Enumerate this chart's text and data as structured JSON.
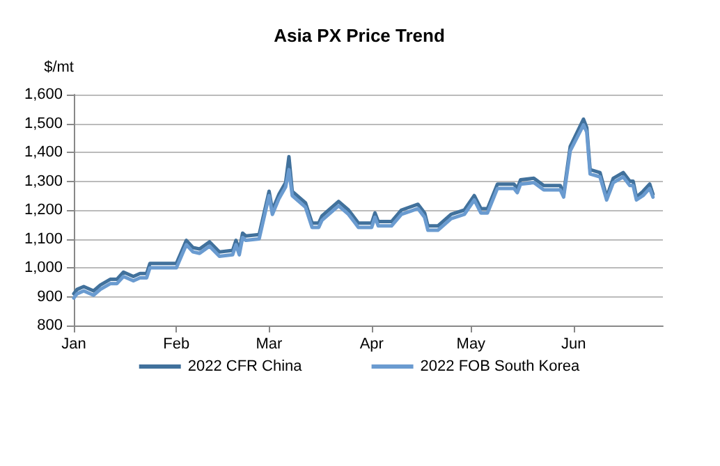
{
  "chart_data": {
    "type": "line",
    "title": "Asia PX Price Trend",
    "ylabel": "$/mt",
    "x": [
      "2022-01-01",
      "2022-01-02",
      "2022-01-04",
      "2022-01-07",
      "2022-01-09",
      "2022-01-12",
      "2022-01-14",
      "2022-01-16",
      "2022-01-19",
      "2022-01-21",
      "2022-01-23",
      "2022-01-24",
      "2022-02-01",
      "2022-02-04",
      "2022-02-06",
      "2022-02-08",
      "2022-02-11",
      "2022-02-14",
      "2022-02-18",
      "2022-02-19",
      "2022-02-20",
      "2022-02-21",
      "2022-02-22",
      "2022-02-26",
      "2022-03-01",
      "2022-03-02",
      "2022-03-04",
      "2022-03-06",
      "2022-03-07",
      "2022-03-08",
      "2022-03-12",
      "2022-03-14",
      "2022-03-16",
      "2022-03-17",
      "2022-03-22",
      "2022-03-25",
      "2022-03-28",
      "2022-04-01",
      "2022-04-02",
      "2022-04-03",
      "2022-04-07",
      "2022-04-10",
      "2022-04-15",
      "2022-04-17",
      "2022-04-18",
      "2022-04-21",
      "2022-04-25",
      "2022-04-29",
      "2022-05-02",
      "2022-05-04",
      "2022-05-06",
      "2022-05-09",
      "2022-05-14",
      "2022-05-15",
      "2022-05-16",
      "2022-05-20",
      "2022-05-23",
      "2022-05-28",
      "2022-05-29",
      "2022-05-31",
      "2022-06-04",
      "2022-06-05",
      "2022-06-06",
      "2022-06-09",
      "2022-06-11",
      "2022-06-13",
      "2022-06-16",
      "2022-06-18",
      "2022-06-19",
      "2022-06-20",
      "2022-06-22",
      "2022-06-24",
      "2022-06-25"
    ],
    "series": [
      {
        "name": "2022 CFR China",
        "color": "#41719c",
        "values": [
          910,
          925,
          935,
          920,
          940,
          960,
          960,
          985,
          970,
          980,
          980,
          1015,
          1015,
          1095,
          1070,
          1065,
          1090,
          1055,
          1060,
          1095,
          1060,
          1120,
          1110,
          1115,
          1265,
          1200,
          1255,
          1295,
          1385,
          1265,
          1225,
          1155,
          1155,
          1180,
          1230,
          1200,
          1155,
          1155,
          1190,
          1160,
          1160,
          1200,
          1220,
          1190,
          1145,
          1145,
          1185,
          1200,
          1250,
          1205,
          1205,
          1290,
          1290,
          1275,
          1305,
          1310,
          1285,
          1285,
          1255,
          1420,
          1515,
          1485,
          1340,
          1330,
          1245,
          1310,
          1330,
          1300,
          1300,
          1245,
          1265,
          1290,
          1255
        ]
      },
      {
        "name": "2022 FOB South Korea",
        "color": "#6a9bd0",
        "values": [
          895,
          910,
          920,
          905,
          925,
          945,
          945,
          970,
          955,
          965,
          965,
          1000,
          1000,
          1080,
          1055,
          1050,
          1075,
          1040,
          1045,
          1080,
          1045,
          1105,
          1095,
          1100,
          1250,
          1185,
          1240,
          1280,
          1340,
          1250,
          1210,
          1140,
          1140,
          1165,
          1215,
          1185,
          1140,
          1140,
          1175,
          1145,
          1145,
          1185,
          1205,
          1175,
          1130,
          1130,
          1170,
          1185,
          1235,
          1190,
          1190,
          1275,
          1275,
          1260,
          1290,
          1295,
          1270,
          1270,
          1245,
          1405,
          1495,
          1470,
          1325,
          1315,
          1235,
          1295,
          1315,
          1285,
          1285,
          1235,
          1250,
          1275,
          1245
        ]
      }
    ],
    "xlim": [
      "2022-01-01",
      "2022-06-28"
    ],
    "xticks": [
      {
        "value": "2022-01-01",
        "label": "Jan"
      },
      {
        "value": "2022-02-01",
        "label": "Feb"
      },
      {
        "value": "2022-03-01",
        "label": "Mar"
      },
      {
        "value": "2022-04-01",
        "label": "Apr"
      },
      {
        "value": "2022-05-01",
        "label": "May"
      },
      {
        "value": "2022-06-01",
        "label": "Jun"
      }
    ],
    "ylim": [
      800,
      1600
    ],
    "yticks": [
      {
        "value": 800,
        "label": "800"
      },
      {
        "value": 900,
        "label": "900"
      },
      {
        "value": 1000,
        "label": "1,000"
      },
      {
        "value": 1100,
        "label": "1,100"
      },
      {
        "value": 1200,
        "label": "1,200"
      },
      {
        "value": 1300,
        "label": "1,300"
      },
      {
        "value": 1400,
        "label": "1,400"
      },
      {
        "value": 1500,
        "label": "1,500"
      },
      {
        "value": 1600,
        "label": "1,600"
      }
    ],
    "grid": "y",
    "legend": "bottom",
    "marker": "none",
    "line_style": "solid"
  }
}
